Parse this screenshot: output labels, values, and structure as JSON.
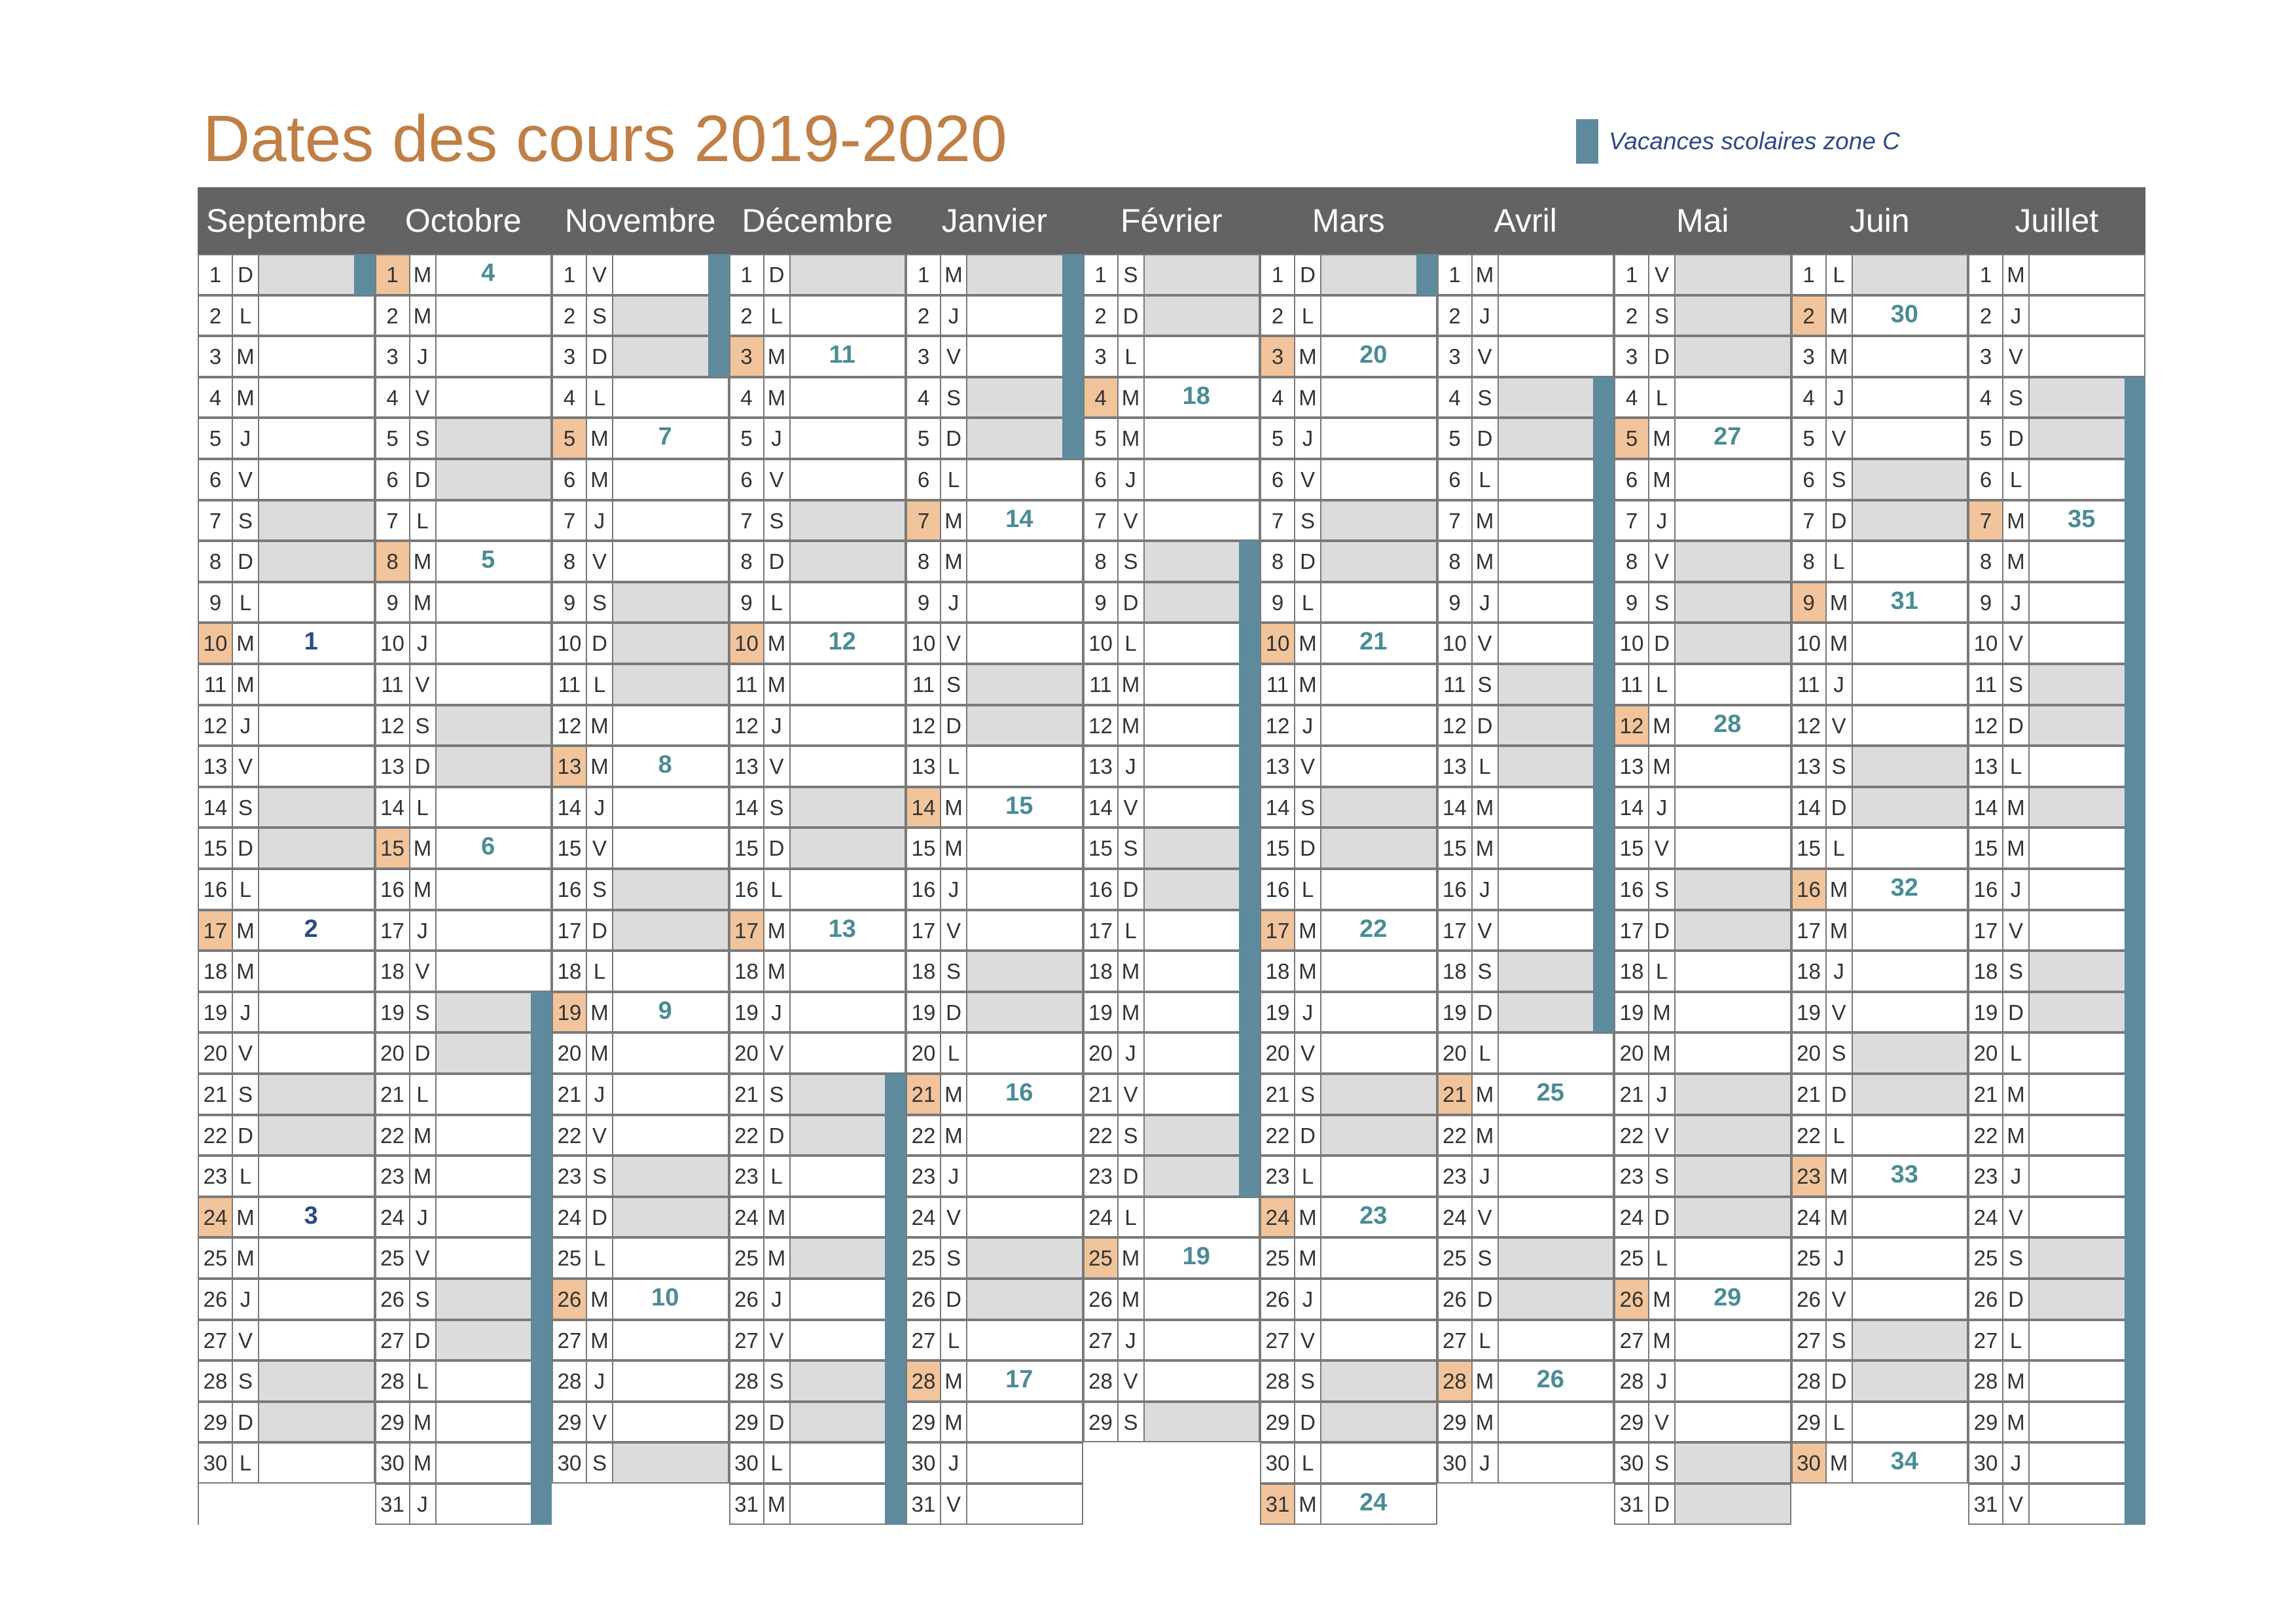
{
  "title": "Dates des cours 2019-2020",
  "legend": {
    "label": "Vacances scolaires zone C",
    "color": "#5e8a9d"
  },
  "colors": {
    "header": "#636363",
    "title": "#c07f45",
    "highlight": "#f2c49b",
    "weekend": "#dcdcdc",
    "vacation": "#5e8a9d",
    "week_number": "#4a8c95"
  },
  "months": [
    {
      "name": "Septembre",
      "days": 30,
      "start": 6,
      "highlight": [
        10,
        17,
        24
      ],
      "weeks": {
        "10": "1",
        "17": "2",
        "24": "3"
      },
      "vacation": [
        [
          1,
          1
        ]
      ]
    },
    {
      "name": "Octobre",
      "days": 31,
      "start": 1,
      "highlight": [
        1,
        8,
        15
      ],
      "weeks": {
        "1": "4",
        "8": "5",
        "15": "6"
      },
      "vacation": [
        [
          19,
          31
        ]
      ]
    },
    {
      "name": "Novembre",
      "days": 30,
      "start": 4,
      "highlight": [
        5,
        13,
        19,
        26
      ],
      "weeks": {
        "5": "7",
        "13": "8",
        "19": "9",
        "26": "10"
      },
      "vacation": [
        [
          1,
          3
        ]
      ],
      "weekend_extra": [
        11
      ]
    },
    {
      "name": "Décembre",
      "days": 31,
      "start": 6,
      "highlight": [
        3,
        10,
        17
      ],
      "weeks": {
        "3": "11",
        "10": "12",
        "17": "13"
      },
      "vacation": [
        [
          21,
          31
        ]
      ],
      "weekend_extra": [
        25
      ]
    },
    {
      "name": "Janvier",
      "days": 31,
      "start": 2,
      "highlight": [
        7,
        14,
        21,
        28
      ],
      "weeks": {
        "7": "14",
        "14": "15",
        "21": "16",
        "28": "17"
      },
      "vacation": [
        [
          1,
          5
        ]
      ],
      "weekend_extra": [
        1
      ]
    },
    {
      "name": "Février",
      "days": 29,
      "start": 5,
      "highlight": [
        4,
        25
      ],
      "weeks": {
        "4": "18",
        "25": "19"
      },
      "vacation": []
    },
    {
      "name": "Mars",
      "days": 31,
      "start": 6,
      "highlight": [
        3,
        10,
        17,
        24,
        31
      ],
      "weeks": {
        "3": "20",
        "10": "21",
        "17": "22",
        "24": "23",
        "31": "24"
      },
      "vacation": []
    },
    {
      "name": "Avril",
      "days": 30,
      "start": 2,
      "highlight": [
        21,
        28
      ],
      "weeks": {
        "21": "25",
        "28": "26"
      },
      "vacation": [
        [
          4,
          19
        ]
      ],
      "weekend_extra": [
        13
      ]
    },
    {
      "name": "Mai",
      "days": 31,
      "start": 4,
      "highlight": [
        5,
        12,
        26
      ],
      "weeks": {
        "5": "27",
        "12": "28",
        "26": "29"
      },
      "vacation": [],
      "weekend_extra": [
        1,
        8,
        21,
        22
      ]
    },
    {
      "name": "Juin",
      "days": 30,
      "start": 0,
      "highlight": [
        2,
        9,
        16,
        23,
        30
      ],
      "weeks": {
        "2": "30",
        "9": "31",
        "16": "32",
        "23": "33",
        "30": "34"
      },
      "vacation": [],
      "weekend_extra": [
        1
      ]
    },
    {
      "name": "Juillet",
      "days": 31,
      "start": 2,
      "highlight": [
        7
      ],
      "weeks": {
        "7": "35"
      },
      "vacation": [
        [
          4,
          31
        ]
      ],
      "weekend_extra": [
        14
      ]
    }
  ],
  "day_letters": [
    "L",
    "M",
    "M",
    "J",
    "V",
    "S",
    "D"
  ],
  "feb_vacation": [
    [
      8,
      23
    ]
  ],
  "mar_vacation": [
    [
      1,
      1
    ]
  ]
}
